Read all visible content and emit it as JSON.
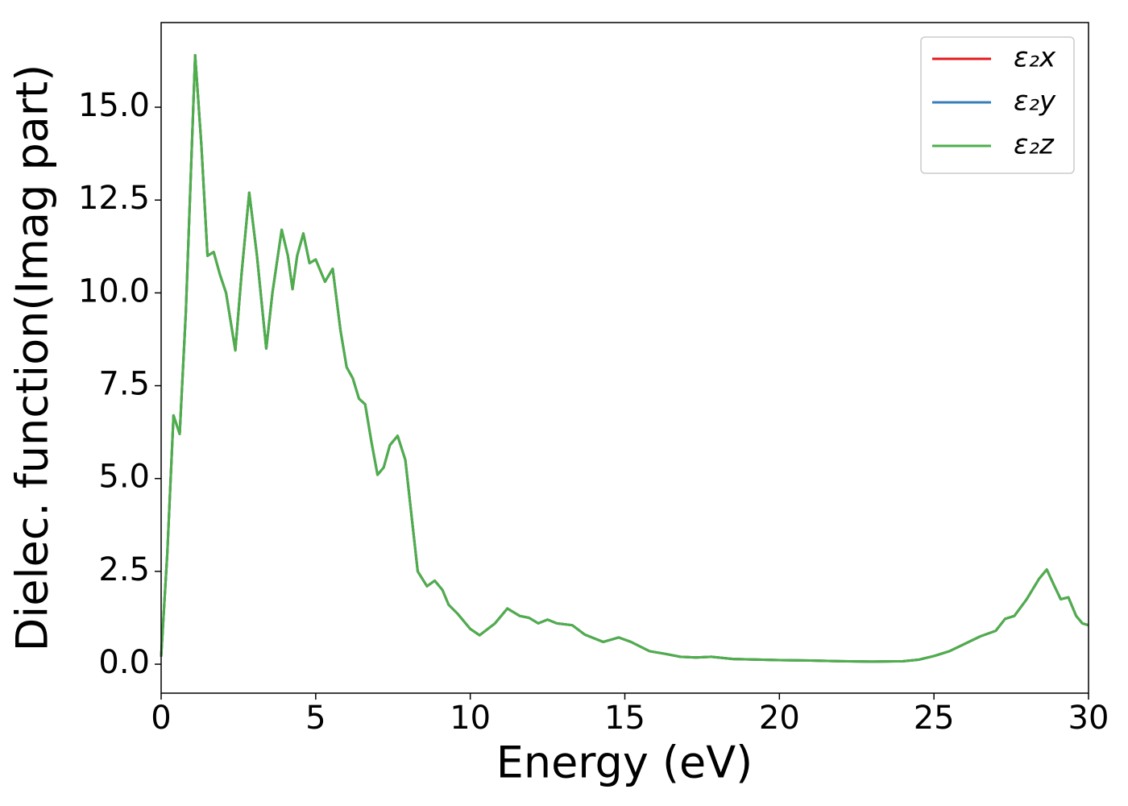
{
  "chart_data": {
    "type": "line",
    "xlabel": "Energy (eV)",
    "ylabel": "Dielec. function(Imag part)",
    "x": [
      0,
      0.2,
      0.4,
      0.6,
      0.8,
      1.1,
      1.3,
      1.5,
      1.7,
      1.9,
      2.1,
      2.4,
      2.6,
      2.85,
      3.1,
      3.4,
      3.6,
      3.9,
      4.1,
      4.25,
      4.4,
      4.6,
      4.8,
      5.0,
      5.3,
      5.55,
      5.8,
      6.0,
      6.2,
      6.4,
      6.6,
      6.8,
      7.0,
      7.2,
      7.4,
      7.65,
      7.9,
      8.1,
      8.3,
      8.6,
      8.85,
      9.1,
      9.3,
      9.6,
      10.0,
      10.3,
      10.8,
      11.2,
      11.6,
      11.9,
      12.2,
      12.5,
      12.8,
      13.3,
      13.7,
      14.3,
      14.8,
      15.2,
      15.8,
      16.3,
      16.8,
      17.3,
      17.8,
      18.5,
      20,
      21,
      22,
      23,
      24,
      24.5,
      25,
      25.5,
      26,
      26.5,
      27,
      27.3,
      27.6,
      28,
      28.4,
      28.65,
      28.9,
      29.1,
      29.35,
      29.6,
      29.8,
      30
    ],
    "series": [
      {
        "name": "ε₂x",
        "color": "#e41a1c",
        "values": [
          0.2,
          3,
          6.7,
          6.2,
          9.5,
          16.4,
          14,
          11,
          11.1,
          10.5,
          10,
          8.45,
          10.5,
          12.7,
          11,
          8.5,
          10,
          11.7,
          11,
          10.1,
          11,
          11.6,
          10.8,
          10.9,
          10.3,
          10.65,
          9,
          8,
          7.7,
          7.15,
          7.0,
          6,
          5.1,
          5.3,
          5.9,
          6.15,
          5.5,
          4,
          2.5,
          2.1,
          2.25,
          2.0,
          1.6,
          1.35,
          0.95,
          0.78,
          1.1,
          1.5,
          1.3,
          1.25,
          1.1,
          1.2,
          1.1,
          1.05,
          0.8,
          0.6,
          0.72,
          0.6,
          0.35,
          0.28,
          0.2,
          0.18,
          0.2,
          0.14,
          0.11,
          0.1,
          0.08,
          0.07,
          0.08,
          0.12,
          0.22,
          0.35,
          0.55,
          0.75,
          0.9,
          1.22,
          1.3,
          1.75,
          2.3,
          2.55,
          2.1,
          1.75,
          1.8,
          1.3,
          1.1,
          1.05
        ]
      },
      {
        "name": "ε₂y",
        "color": "#377eb8",
        "values": [
          0.2,
          3,
          6.7,
          6.2,
          9.5,
          16.4,
          14,
          11,
          11.1,
          10.5,
          10,
          8.45,
          10.5,
          12.7,
          11,
          8.5,
          10,
          11.7,
          11,
          10.1,
          11,
          11.6,
          10.8,
          10.9,
          10.3,
          10.65,
          9,
          8,
          7.7,
          7.15,
          7.0,
          6,
          5.1,
          5.3,
          5.9,
          6.15,
          5.5,
          4,
          2.5,
          2.1,
          2.25,
          2.0,
          1.6,
          1.35,
          0.95,
          0.78,
          1.1,
          1.5,
          1.3,
          1.25,
          1.1,
          1.2,
          1.1,
          1.05,
          0.8,
          0.6,
          0.72,
          0.6,
          0.35,
          0.28,
          0.2,
          0.18,
          0.2,
          0.14,
          0.11,
          0.1,
          0.08,
          0.07,
          0.08,
          0.12,
          0.22,
          0.35,
          0.55,
          0.75,
          0.9,
          1.22,
          1.3,
          1.75,
          2.3,
          2.55,
          2.1,
          1.75,
          1.8,
          1.3,
          1.1,
          1.05
        ]
      },
      {
        "name": "ε₂z",
        "color": "#4daf4a",
        "values": [
          0.2,
          3,
          6.7,
          6.2,
          9.5,
          16.4,
          14,
          11,
          11.1,
          10.5,
          10,
          8.45,
          10.5,
          12.7,
          11,
          8.5,
          10,
          11.7,
          11,
          10.1,
          11,
          11.6,
          10.8,
          10.9,
          10.3,
          10.65,
          9,
          8,
          7.7,
          7.15,
          7.0,
          6,
          5.1,
          5.3,
          5.9,
          6.15,
          5.5,
          4,
          2.5,
          2.1,
          2.25,
          2.0,
          1.6,
          1.35,
          0.95,
          0.78,
          1.1,
          1.5,
          1.3,
          1.25,
          1.1,
          1.2,
          1.1,
          1.05,
          0.8,
          0.6,
          0.72,
          0.6,
          0.35,
          0.28,
          0.2,
          0.18,
          0.2,
          0.14,
          0.11,
          0.1,
          0.08,
          0.07,
          0.08,
          0.12,
          0.22,
          0.35,
          0.55,
          0.75,
          0.9,
          1.22,
          1.3,
          1.75,
          2.3,
          2.55,
          2.1,
          1.75,
          1.8,
          1.3,
          1.1,
          1.05
        ]
      }
    ],
    "xlim": [
      0,
      30
    ],
    "xticks": [
      0,
      5,
      10,
      15,
      20,
      25,
      30
    ],
    "ylim": [
      -0.78,
      17.28
    ],
    "yticks": [
      {
        "value": 0,
        "label": "0.0"
      },
      2.5,
      {
        "value": 5,
        "label": "5.0"
      },
      7.5,
      {
        "value": 10,
        "label": "10.0"
      },
      12.5,
      {
        "value": 15,
        "label": "15.0"
      }
    ],
    "legend": "upper right",
    "grid": false
  }
}
